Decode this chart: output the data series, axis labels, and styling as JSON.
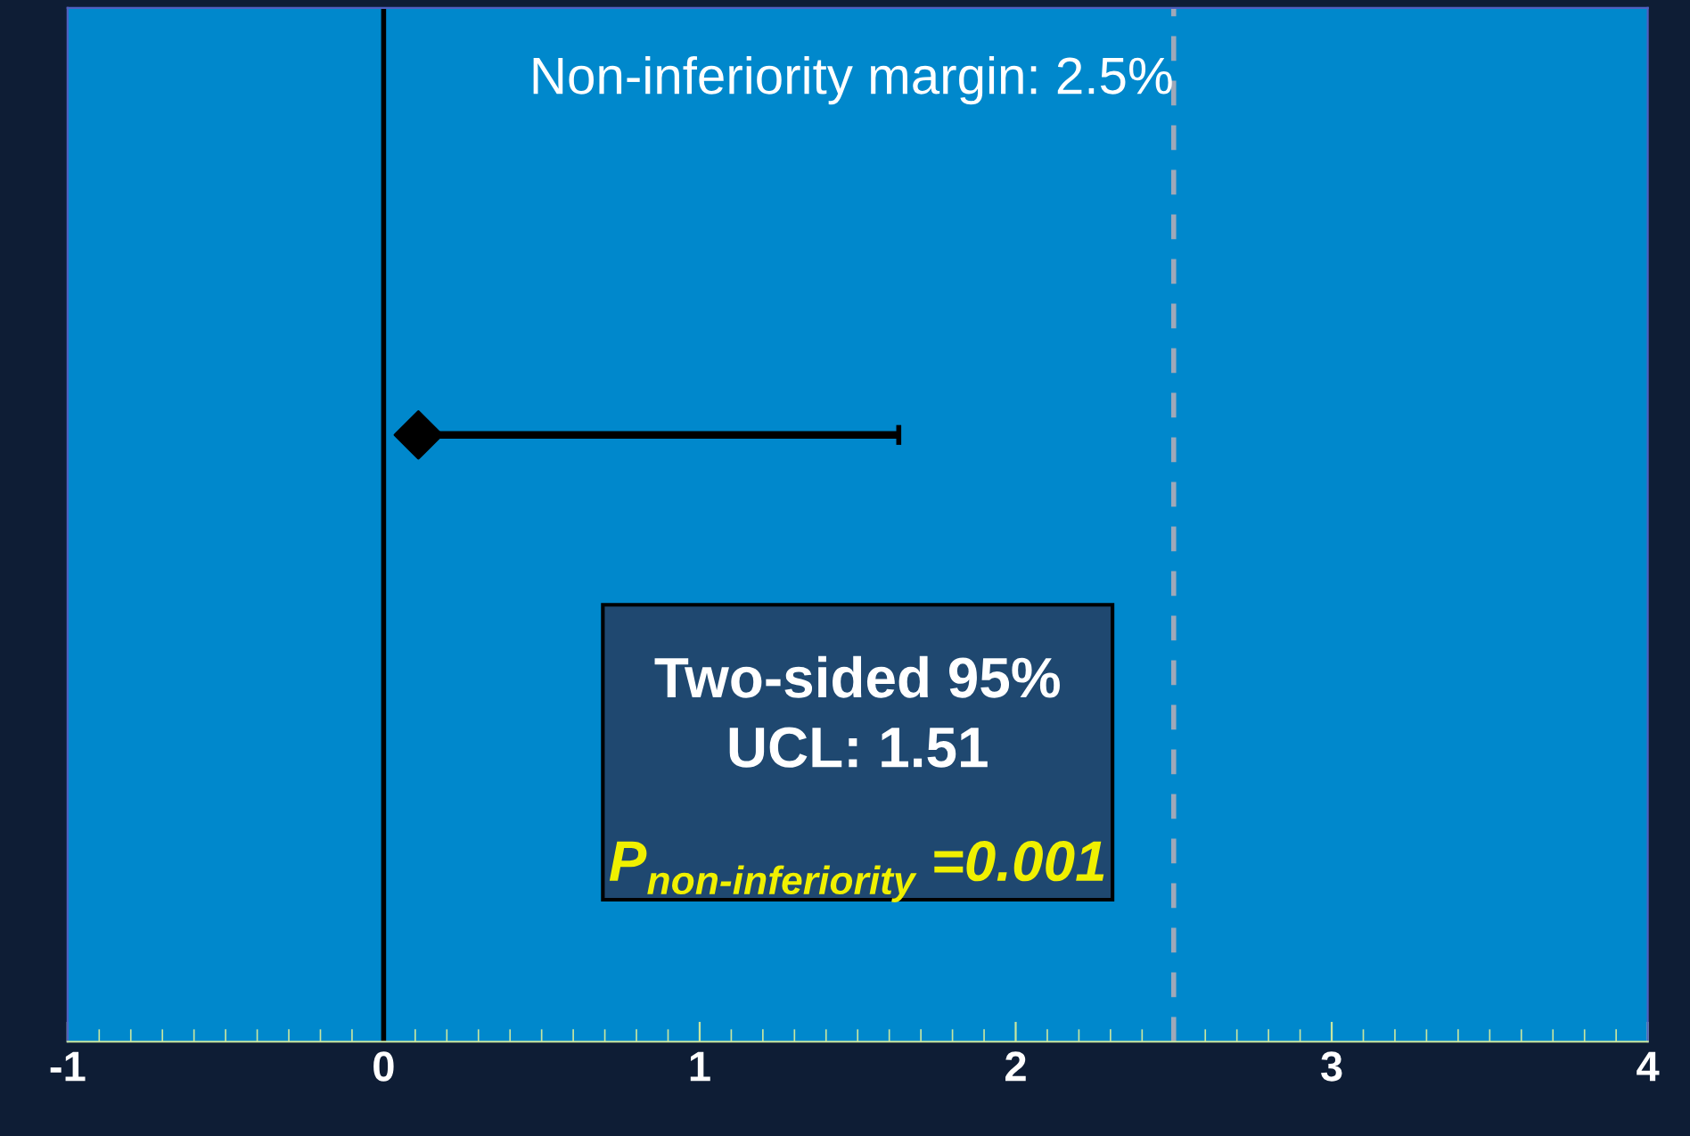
{
  "chart_data": {
    "type": "scatter",
    "orientation": "horizontal",
    "categories": [
      null
    ],
    "values": [
      0.11
    ],
    "errors": [
      [
        0.11,
        1.63
      ]
    ],
    "color": "#000000",
    "marker": "diamond",
    "xlim": [
      -1,
      4
    ],
    "xticks": [
      -1,
      0,
      1,
      2,
      3,
      4
    ],
    "grid": false,
    "legend": false,
    "tick_labels": "x",
    "ref_lines": [
      {
        "axis": "x",
        "value": 0,
        "color": "#000000",
        "line_style": "solid"
      },
      {
        "axis": "x",
        "value": 2.5,
        "color": "#a0a8b8",
        "line_style": "dashed",
        "label": "Non-inferiority margin: 2.5%"
      }
    ],
    "annotations": [
      "Two-sided 95%\nUCL: 1.51",
      "P$_{non-inferiority}$ =0.001"
    ]
  }
}
